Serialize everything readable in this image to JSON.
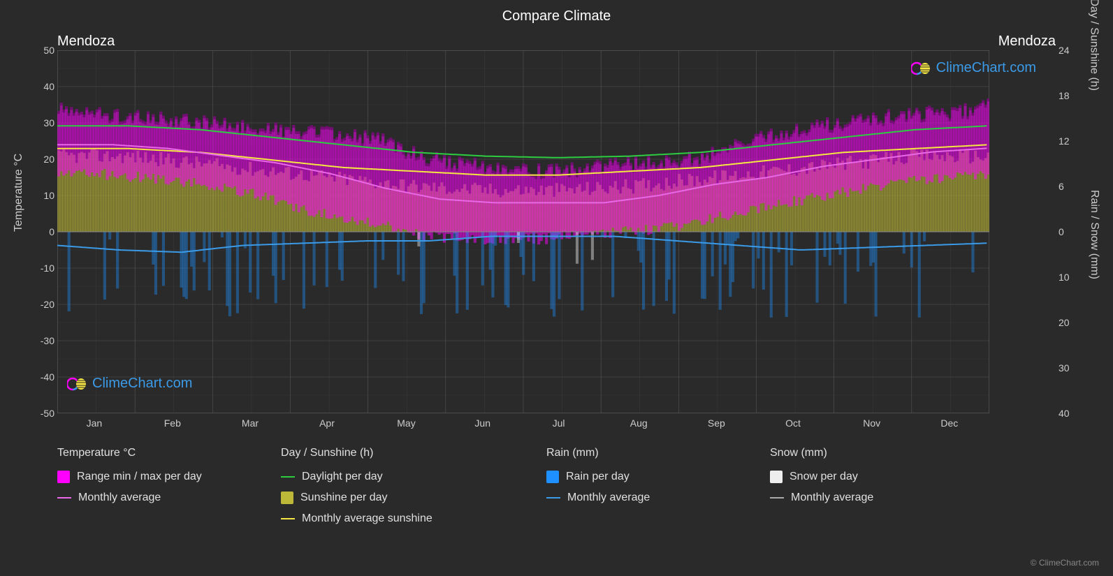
{
  "title": "Compare Climate",
  "city_left": "Mendoza",
  "city_right": "Mendoza",
  "axis_left_label": "Temperature °C",
  "axis_right_top_label": "Day / Sunshine (h)",
  "axis_right_bottom_label": "Rain / Snow (mm)",
  "watermark_text": "ClimeChart.com",
  "credit": "© ClimeChart.com",
  "months": [
    "Jan",
    "Feb",
    "Mar",
    "Apr",
    "May",
    "Jun",
    "Jul",
    "Aug",
    "Sep",
    "Oct",
    "Nov",
    "Dec"
  ],
  "chart": {
    "background_color": "#2a2a2a",
    "plot_background": "#2a2a2a",
    "grid_color": "#555555",
    "grid_minor_color": "#404040",
    "left_axis": {
      "min": -50,
      "max": 50,
      "ticks": [
        50,
        40,
        30,
        20,
        10,
        0,
        -10,
        -20,
        -30,
        -40,
        -50
      ]
    },
    "right_axis_top": {
      "min": 0,
      "max": 24,
      "ticks": [
        24,
        18,
        12,
        6,
        0
      ]
    },
    "right_axis_bottom": {
      "min": 0,
      "max": 40,
      "ticks": [
        0,
        10,
        20,
        30,
        40
      ]
    },
    "series": {
      "temp_range": {
        "color": "#ff00ff",
        "fill_opacity": 0.5,
        "daily_max": [
          33,
          32,
          31,
          30,
          29,
          28,
          27,
          26,
          25,
          20,
          18,
          17,
          16,
          17,
          18,
          19,
          20,
          24,
          27,
          29,
          30,
          32,
          32,
          34
        ],
        "daily_min": [
          16,
          16,
          15,
          14,
          12,
          10,
          6,
          4,
          2,
          -1,
          -2,
          -2,
          -2,
          -1,
          0,
          1,
          3,
          6,
          8,
          10,
          12,
          14,
          15,
          16
        ]
      },
      "temp_avg": {
        "color": "#e868e8",
        "line_width": 2,
        "values": [
          24,
          24,
          23,
          21,
          19,
          16,
          12,
          9,
          8,
          8,
          8,
          10,
          13,
          15,
          18,
          20,
          22,
          23
        ]
      },
      "daylight": {
        "color": "#2ecc40",
        "line_width": 2,
        "values": [
          14,
          14,
          13.5,
          12.5,
          11.5,
          10.5,
          10,
          9.8,
          10,
          10.5,
          11.5,
          12.5,
          13.5,
          14
        ]
      },
      "sunshine_fill": {
        "color": "#bdb838",
        "fill_opacity": 0.55,
        "values": [
          10,
          10,
          9,
          8,
          7,
          6,
          5.5,
          5.5,
          6,
          7,
          8,
          9,
          10,
          10
        ]
      },
      "sunshine_avg": {
        "color": "#f5e642",
        "line_width": 2,
        "values": [
          11,
          11,
          10.5,
          9.5,
          8.5,
          8,
          7.5,
          7.5,
          8,
          8.5,
          9.5,
          10.5,
          11,
          11.5
        ]
      },
      "rain_daily": {
        "color": "#1e90ff",
        "fill_opacity": 0.4
      },
      "rain_avg": {
        "color": "#3b9be8",
        "line_width": 2,
        "values": [
          3,
          4,
          4.5,
          3,
          2.5,
          2,
          2,
          1,
          1,
          1,
          2,
          3,
          4,
          3.5,
          3,
          2.5
        ]
      },
      "snow_daily": {
        "color": "#ffffff",
        "fill_opacity": 0.4
      },
      "snow_avg": {
        "color": "#aaaaaa",
        "line_width": 2
      }
    }
  },
  "legend": {
    "col1": {
      "header": "Temperature °C",
      "items": [
        {
          "swatch": "box",
          "color": "#ff00ff",
          "label": "Range min / max per day"
        },
        {
          "swatch": "line",
          "color": "#e868e8",
          "label": "Monthly average"
        }
      ]
    },
    "col2": {
      "header": "Day / Sunshine (h)",
      "items": [
        {
          "swatch": "line",
          "color": "#2ecc40",
          "label": "Daylight per day"
        },
        {
          "swatch": "box",
          "color": "#bdb838",
          "label": "Sunshine per day"
        },
        {
          "swatch": "line",
          "color": "#f5e642",
          "label": "Monthly average sunshine"
        }
      ]
    },
    "col3": {
      "header": "Rain (mm)",
      "items": [
        {
          "swatch": "box",
          "color": "#1e90ff",
          "label": "Rain per day"
        },
        {
          "swatch": "line",
          "color": "#3b9be8",
          "label": "Monthly average"
        }
      ]
    },
    "col4": {
      "header": "Snow (mm)",
      "items": [
        {
          "swatch": "box",
          "color": "#eeeeee",
          "label": "Snow per day"
        },
        {
          "swatch": "line",
          "color": "#aaaaaa",
          "label": "Monthly average"
        }
      ]
    }
  }
}
